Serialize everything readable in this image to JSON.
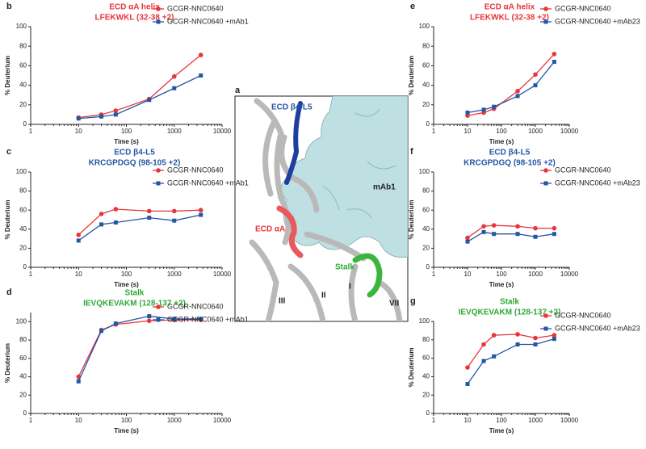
{
  "chart_data": [
    {
      "type": "line",
      "label": "b",
      "title": [
        "ECD αA helix",
        "LFEKWKL (32-38 +2)"
      ],
      "title_color": "#e8343a",
      "xlabel": "Time (s)",
      "ylabel": "% Deuterium",
      "xscale": "log",
      "xlim": [
        1,
        10000
      ],
      "xticks": [
        1,
        10,
        100,
        1000,
        10000
      ],
      "ylim": [
        0,
        100
      ],
      "yticks": [
        0,
        20,
        40,
        60,
        80,
        100
      ],
      "legend": "right",
      "x": [
        10,
        30,
        60,
        300,
        1000,
        3600
      ],
      "series": [
        {
          "name": "GCGR-NNC0640",
          "color": "#e8343a",
          "marker": "circle",
          "values": [
            7,
            10,
            14,
            26,
            49,
            71
          ]
        },
        {
          "name": "GCGR-NNC0640 +mAb1",
          "color": "#2356a6",
          "marker": "square",
          "values": [
            6,
            8,
            10,
            25,
            37,
            50
          ]
        }
      ]
    },
    {
      "type": "line",
      "label": "c",
      "title": [
        "ECD β4-L5",
        "KRCGPDGQ (98-105 +2)"
      ],
      "title_color": "#2356a6",
      "xlabel": "Time (s)",
      "ylabel": "% Deuterium",
      "xscale": "log",
      "xlim": [
        1,
        10000
      ],
      "xticks": [
        1,
        10,
        100,
        1000,
        10000
      ],
      "ylim": [
        0,
        100
      ],
      "yticks": [
        0,
        20,
        40,
        60,
        80,
        100
      ],
      "legend": "right",
      "x": [
        10,
        30,
        60,
        300,
        1000,
        3600
      ],
      "series": [
        {
          "name": "GCGR-NNC0640",
          "color": "#e8343a",
          "marker": "circle",
          "values": [
            34,
            56,
            61,
            59,
            59,
            60
          ]
        },
        {
          "name": "GCGR-NNC0640 +mAb1",
          "color": "#2356a6",
          "marker": "square",
          "values": [
            28,
            45,
            47,
            52,
            49,
            55
          ]
        }
      ]
    },
    {
      "type": "line",
      "label": "d",
      "title": [
        "Stalk",
        "IEVQKEVAKM (128-137 +2)"
      ],
      "title_color": "#2ea836",
      "xlabel": "Time (s)",
      "ylabel": "% Deuterium",
      "xscale": "log",
      "xlim": [
        1,
        10000
      ],
      "xticks": [
        1,
        10,
        100,
        1000,
        10000
      ],
      "ylim": [
        0,
        110
      ],
      "yticks": [
        0,
        20,
        40,
        60,
        80,
        100
      ],
      "legend": "right",
      "x": [
        10,
        30,
        60,
        300,
        1000,
        3600
      ],
      "series": [
        {
          "name": "GCGR-NNC0640",
          "color": "#e8343a",
          "marker": "circle",
          "values": [
            40,
            91,
            97,
            101,
            102,
            102
          ]
        },
        {
          "name": "GCGR-NNC0640 +mAb1",
          "color": "#2356a6",
          "marker": "square",
          "values": [
            35,
            90,
            98,
            106,
            103,
            103
          ]
        }
      ]
    },
    {
      "type": "line",
      "label": "e",
      "title": [
        "ECD αA helix",
        "LFEKWKL (32-38 +2)"
      ],
      "title_color": "#e8343a",
      "xlabel": "Time (s)",
      "ylabel": "% Deuterium",
      "xscale": "log",
      "xlim": [
        1,
        10000
      ],
      "xticks": [
        1,
        10,
        100,
        1000,
        10000
      ],
      "ylim": [
        0,
        100
      ],
      "yticks": [
        0,
        20,
        40,
        60,
        80,
        100
      ],
      "legend": "right",
      "x": [
        10,
        30,
        60,
        300,
        1000,
        3600
      ],
      "series": [
        {
          "name": "GCGR-NNC0640",
          "color": "#e8343a",
          "marker": "circle",
          "values": [
            9,
            12,
            16,
            34,
            51,
            72
          ]
        },
        {
          "name": "GCGR-NNC0640 +mAb23",
          "color": "#2356a6",
          "marker": "square",
          "values": [
            12,
            15,
            18,
            29,
            40,
            64
          ]
        }
      ]
    },
    {
      "type": "line",
      "label": "f",
      "title": [
        "ECD β4-L5",
        "KRCGPDGQ (98-105 +2)"
      ],
      "title_color": "#2356a6",
      "xlabel": "Time (s)",
      "ylabel": "% Deuterium",
      "xscale": "log",
      "xlim": [
        1,
        10000
      ],
      "xticks": [
        1,
        10,
        100,
        1000,
        10000
      ],
      "ylim": [
        0,
        100
      ],
      "yticks": [
        0,
        20,
        40,
        60,
        80,
        100
      ],
      "legend": "right",
      "x": [
        10,
        30,
        60,
        300,
        1000,
        3600
      ],
      "series": [
        {
          "name": "GCGR-NNC0640",
          "color": "#e8343a",
          "marker": "circle",
          "values": [
            31,
            43,
            44,
            43,
            41,
            41
          ]
        },
        {
          "name": "GCGR-NNC0640 +mAb23",
          "color": "#2356a6",
          "marker": "square",
          "values": [
            27,
            37,
            35,
            35,
            32,
            35
          ]
        }
      ]
    },
    {
      "type": "line",
      "label": "g",
      "title": [
        "Stalk",
        "IEVQKEVAKM (128-137 +2)"
      ],
      "title_color": "#2ea836",
      "xlabel": "Time (s)",
      "ylabel": "% Deuterium",
      "xscale": "log",
      "xlim": [
        1,
        10000
      ],
      "xticks": [
        1,
        10,
        100,
        1000,
        10000
      ],
      "ylim": [
        0,
        100
      ],
      "yticks": [
        0,
        20,
        40,
        60,
        80,
        100
      ],
      "legend": "right",
      "x": [
        10,
        30,
        60,
        300,
        1000,
        3600
      ],
      "series": [
        {
          "name": "GCGR-NNC0640",
          "color": "#e8343a",
          "marker": "circle",
          "values": [
            50,
            75,
            85,
            86,
            82,
            85
          ]
        },
        {
          "name": "GCGR-NNC0640 +mAb23",
          "color": "#2356a6",
          "marker": "square",
          "values": [
            32,
            57,
            62,
            75,
            75,
            81
          ]
        }
      ]
    }
  ],
  "structure": {
    "label": "a",
    "beta": "ECD β4-L5",
    "antibody": "mAb1",
    "alpha": "ECD αA",
    "stalk": "Stalk",
    "helix3": "III",
    "helix2": "II",
    "helix1": "I",
    "helix7": "VII"
  }
}
